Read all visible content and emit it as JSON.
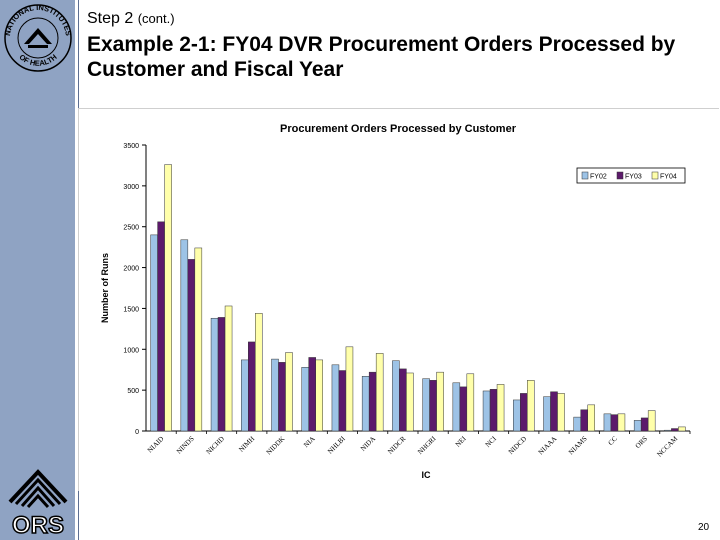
{
  "slide": {
    "step": "Step 2",
    "step_suffix": "(cont.)",
    "title": "Example 2-1: FY04 DVR Procurement Orders Processed by Customer and Fiscal Year",
    "page_number": "20",
    "seal_text": "NATIONAL INSTITUTES OF HEALTH",
    "logo_text": "ORS"
  },
  "colors": {
    "sidebar": "#8fa3c3",
    "FY02": "#9dc3e6",
    "FY03": "#5c1a6b",
    "FY04": "#ffffaa"
  },
  "chart_data": {
    "type": "bar",
    "title": "Procurement Orders Processed by Customer",
    "xlabel": "IC",
    "ylabel": "Number of Runs",
    "ylim": [
      0,
      3500
    ],
    "yticks": [
      0,
      500,
      1000,
      1500,
      2000,
      2500,
      3000,
      3500
    ],
    "legend_position": "top-right",
    "grid": false,
    "categories": [
      "NIAID",
      "NINDS",
      "NICHD",
      "NIMH",
      "NIDDK",
      "NIA",
      "NHLBI",
      "NIDA",
      "NIDCR",
      "NHGRI",
      "NEI",
      "NCI",
      "NIDCD",
      "NIAAA",
      "NIAMS",
      "CC",
      "ORS",
      "NCCAM"
    ],
    "series": [
      {
        "name": "FY02",
        "values": [
          2400,
          2340,
          1380,
          870,
          880,
          780,
          810,
          670,
          860,
          640,
          590,
          490,
          380,
          420,
          170,
          210,
          130,
          10
        ]
      },
      {
        "name": "FY03",
        "values": [
          2560,
          2100,
          1390,
          1090,
          840,
          900,
          740,
          720,
          760,
          620,
          540,
          510,
          460,
          480,
          260,
          200,
          160,
          30
        ]
      },
      {
        "name": "FY04",
        "values": [
          3260,
          2240,
          1530,
          1440,
          960,
          870,
          1030,
          950,
          710,
          720,
          700,
          570,
          620,
          460,
          320,
          210,
          250,
          50
        ]
      }
    ]
  }
}
